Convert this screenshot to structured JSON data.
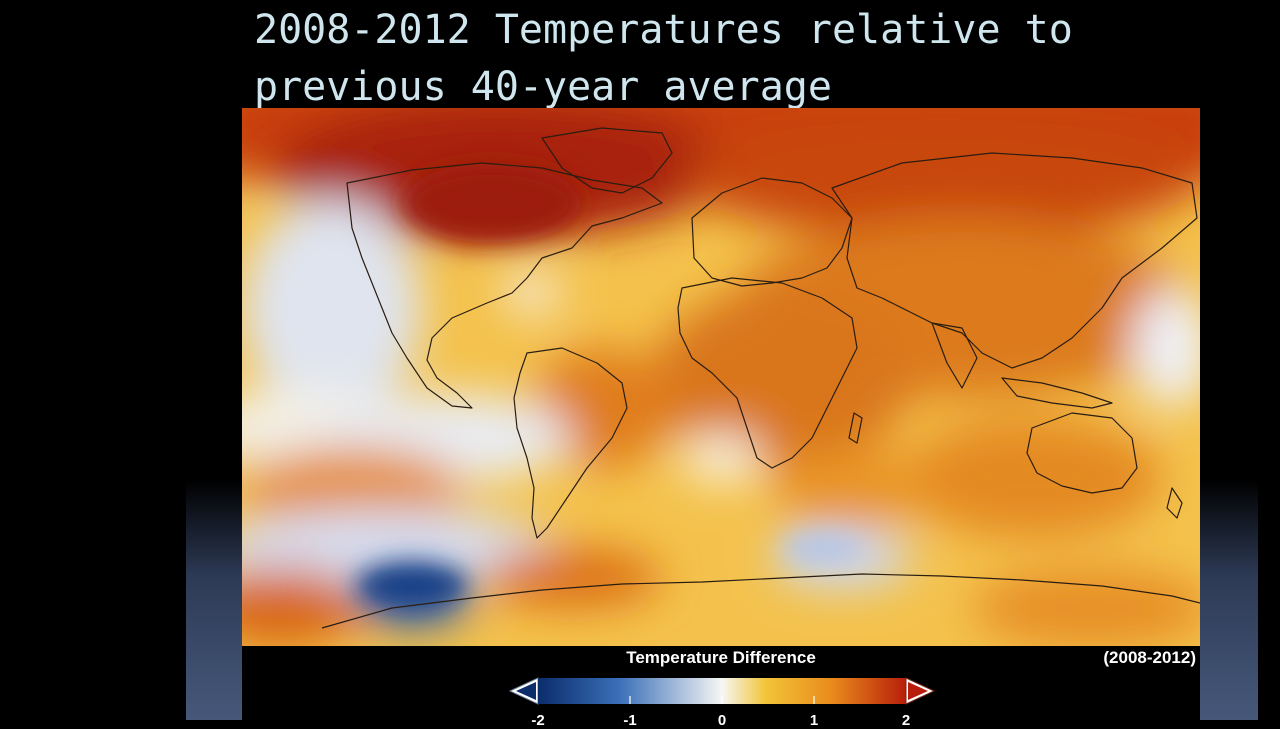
{
  "slide": {
    "title": "2008-2012 Temperatures relative to previous 40-year average"
  },
  "map": {
    "legend_title": "Temperature Difference",
    "period_label": "(2008-2012)",
    "colorbar": {
      "ticks": [
        "-2",
        "-1",
        "0",
        "1",
        "2"
      ],
      "colors": [
        "#0b2d6b",
        "#3a6fb8",
        "#f6f6f4",
        "#f2c437",
        "#e98a1c",
        "#b81e0b"
      ]
    }
  }
}
